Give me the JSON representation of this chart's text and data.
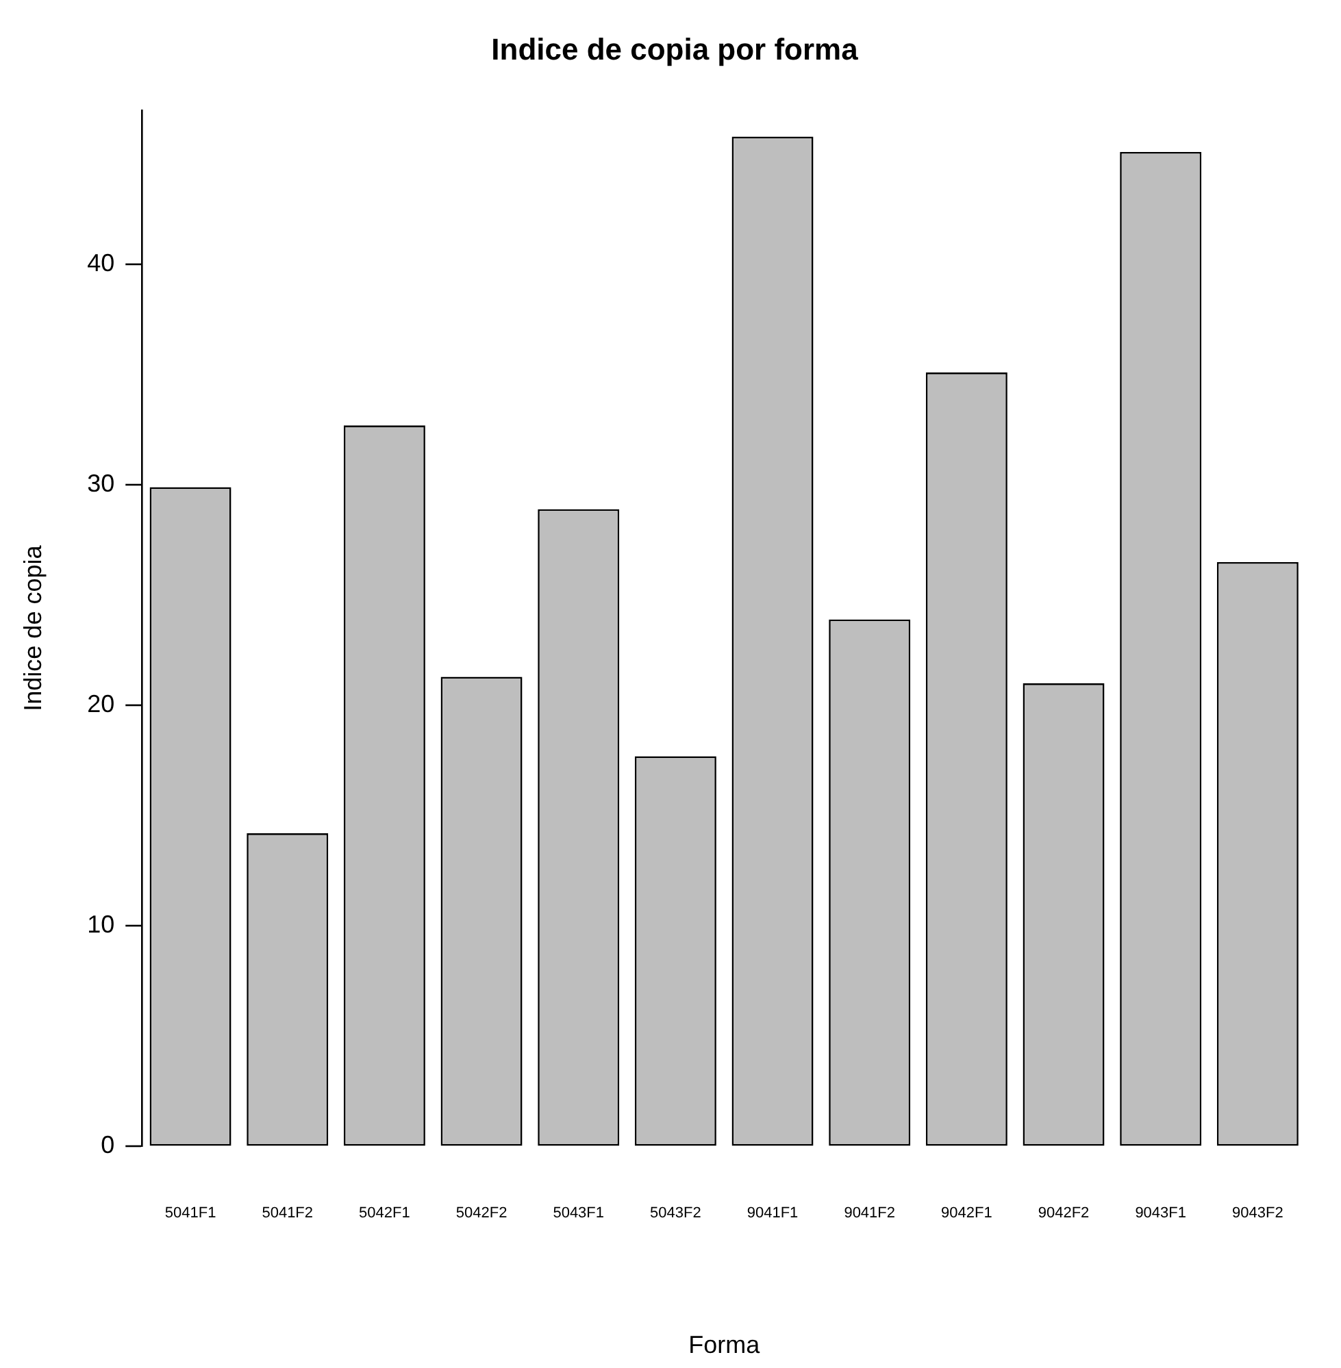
{
  "chart_data": {
    "type": "bar",
    "title": "Indice de copia por forma",
    "xlabel": "Forma",
    "ylabel": "Indice de copia",
    "categories": [
      "5041F1",
      "5041F2",
      "5042F1",
      "5042F2",
      "5043F1",
      "5043F2",
      "9041F1",
      "9041F2",
      "9042F1",
      "9042F2",
      "9043F1",
      "9043F2"
    ],
    "values": [
      29.9,
      14.2,
      32.7,
      21.3,
      28.9,
      17.7,
      45.8,
      23.9,
      35.1,
      21.0,
      45.1,
      26.5
    ],
    "color": "#bebebe",
    "ylim": [
      0,
      47
    ],
    "yticks": [
      0,
      10,
      20,
      30,
      40
    ],
    "grid": false,
    "legend": false
  }
}
